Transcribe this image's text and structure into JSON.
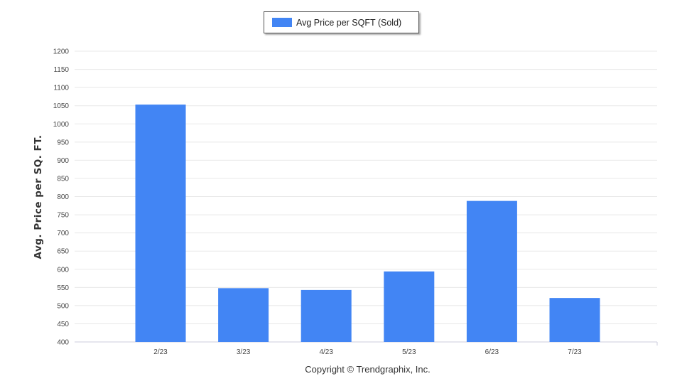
{
  "chart_data": {
    "type": "bar",
    "categories": [
      "2/23",
      "3/23",
      "4/23",
      "5/23",
      "6/23",
      "7/23"
    ],
    "series": [
      {
        "name": "Avg Price per SQFT (Sold)",
        "values": [
          1053,
          548,
          543,
          594,
          788,
          521
        ],
        "color": "#4285f4"
      }
    ],
    "ylabel": "Avg. Price per SQ. FT.",
    "xlabel": "",
    "ylim": [
      400,
      1200
    ],
    "yticks": [
      400,
      450,
      500,
      550,
      600,
      650,
      700,
      750,
      800,
      850,
      900,
      950,
      1000,
      1050,
      1100,
      1150,
      1200
    ],
    "grid": true,
    "legend": "top-center"
  },
  "footer": {
    "copyright": "Copyright © Trendgraphix, Inc."
  }
}
